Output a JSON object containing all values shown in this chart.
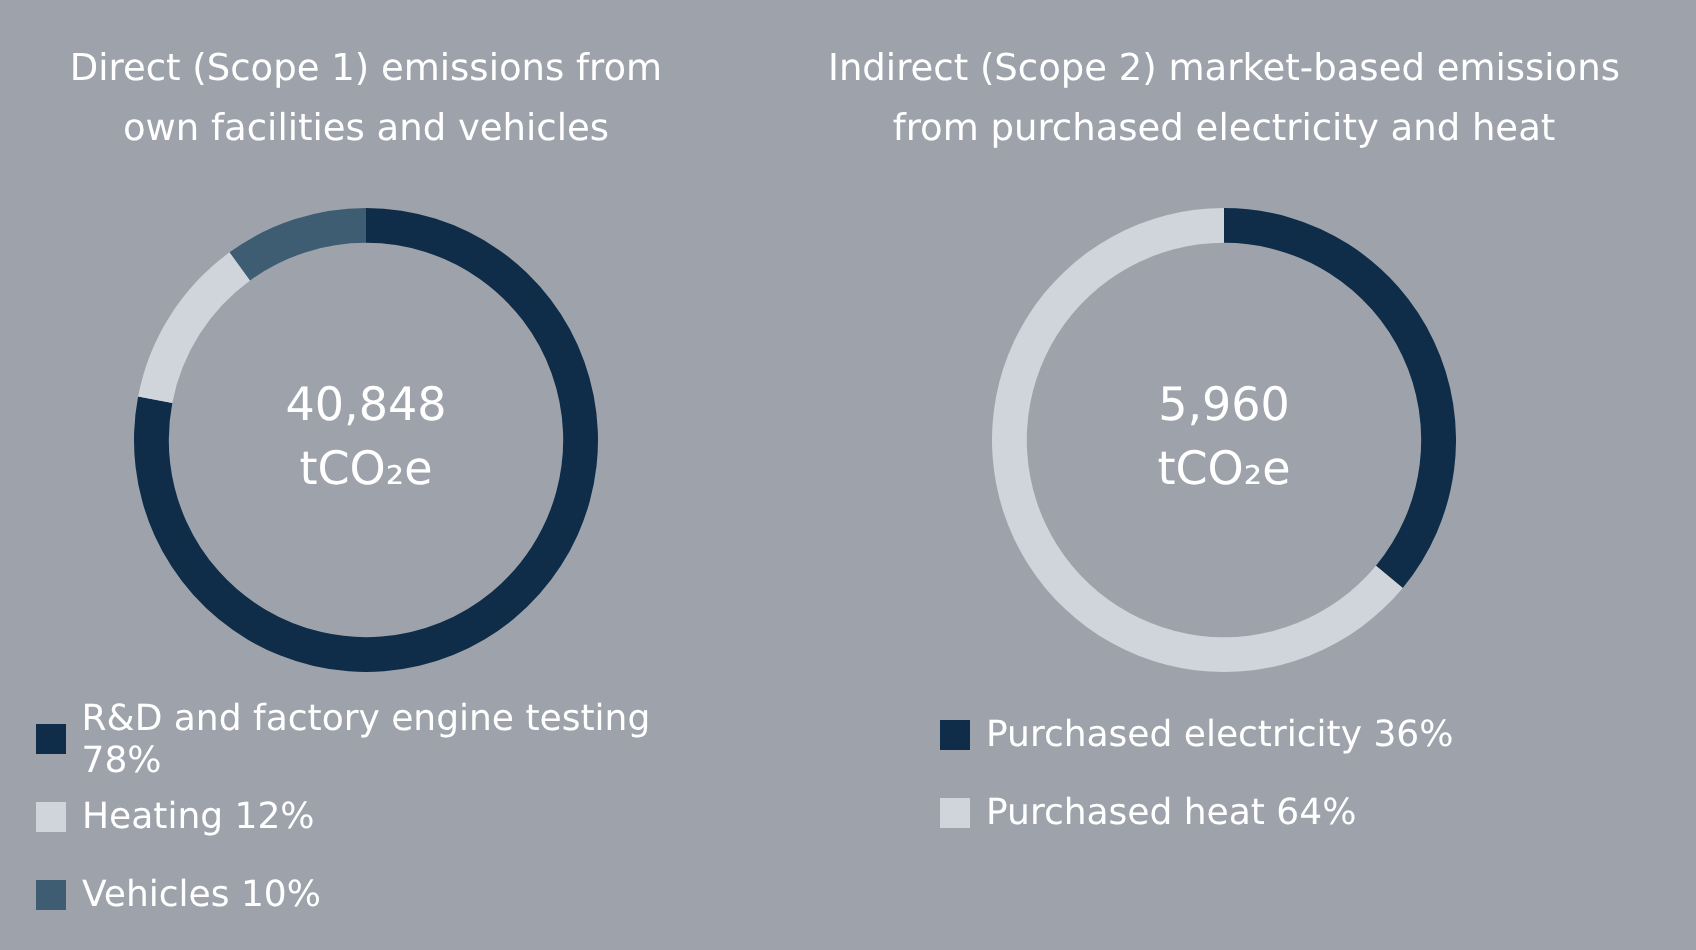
{
  "chart_data": [
    {
      "type": "donut",
      "title": "Direct (Scope 1) emissions from own facilities and vehicles",
      "categories": [
        "R&D and factory engine testing",
        "Heating",
        "Vehicles"
      ],
      "values": [
        78,
        12,
        10
      ],
      "value_labels": [
        "78%",
        "12%",
        "10%"
      ],
      "colors": [
        "#0f2d48",
        "#d0d5db",
        "#3f5d72"
      ],
      "annotations": [
        "40,848 tCO₂e"
      ],
      "legend": "bottom"
    },
    {
      "type": "donut",
      "title": "Indirect (Scope 2) market-based emissions from purchased electricity and heat",
      "categories": [
        "Purchased electricity",
        "Purchased heat"
      ],
      "values": [
        36,
        64
      ],
      "value_labels": [
        "36%",
        "64%"
      ],
      "colors": [
        "#0f2d48",
        "#d0d5db"
      ],
      "annotations": [
        "5,960 tCO₂e"
      ],
      "legend": "bottom"
    }
  ]
}
